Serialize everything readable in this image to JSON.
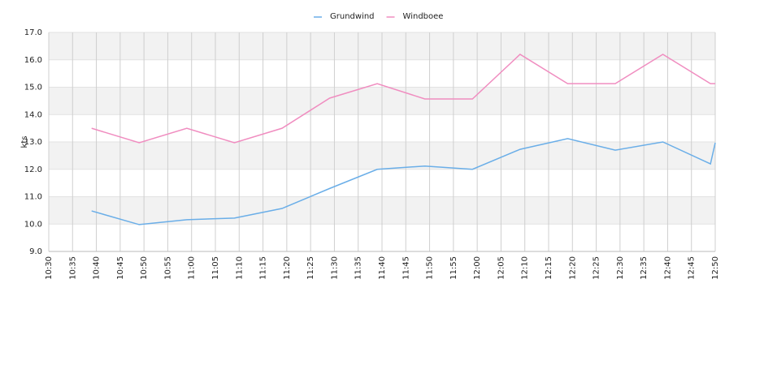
{
  "chart_data": {
    "type": "line",
    "y_label": "kts",
    "x": [
      "10:39",
      "10:49",
      "10:59",
      "11:09",
      "11:19",
      "11:29",
      "11:39",
      "11:49",
      "11:59",
      "12:09",
      "12:19",
      "12:29",
      "12:39",
      "12:49",
      "12:50"
    ],
    "series": [
      {
        "name": "Grundwind",
        "color": "#6aaee8",
        "values": [
          10.48,
          9.98,
          10.16,
          10.22,
          10.57,
          11.3,
          12.0,
          12.12,
          12.0,
          12.73,
          13.12,
          12.7,
          13.0,
          12.2,
          12.97
        ]
      },
      {
        "name": "Windboee",
        "color": "#f08dc0",
        "values": [
          13.5,
          12.97,
          13.5,
          12.97,
          13.5,
          14.6,
          15.13,
          14.57,
          14.57,
          16.2,
          15.13,
          15.13,
          16.2,
          15.13,
          15.13
        ]
      }
    ],
    "xlim": [
      "10:30",
      "12:50"
    ],
    "xticks": [
      "10:30",
      "10:35",
      "10:40",
      "10:45",
      "10:50",
      "10:55",
      "11:00",
      "11:05",
      "11:10",
      "11:15",
      "11:20",
      "11:25",
      "11:30",
      "11:35",
      "11:40",
      "11:45",
      "11:50",
      "11:55",
      "12:00",
      "12:05",
      "12:10",
      "12:15",
      "12:20",
      "12:25",
      "12:30",
      "12:35",
      "12:40",
      "12:45",
      "12:50"
    ],
    "ylim": [
      9,
      17
    ],
    "yticks": [
      {
        "value": 9,
        "label": "9.0"
      },
      {
        "value": 10,
        "label": "10.0"
      },
      {
        "value": 11,
        "label": "11.0"
      },
      {
        "value": 12,
        "label": "12.0"
      },
      {
        "value": 13,
        "label": "13.0"
      },
      {
        "value": 14,
        "label": "14.0"
      },
      {
        "value": 15,
        "label": "15.0"
      },
      {
        "value": 16,
        "label": "16.0"
      },
      {
        "value": 17,
        "label": "17.0"
      }
    ],
    "grid": true,
    "legend": "top"
  }
}
